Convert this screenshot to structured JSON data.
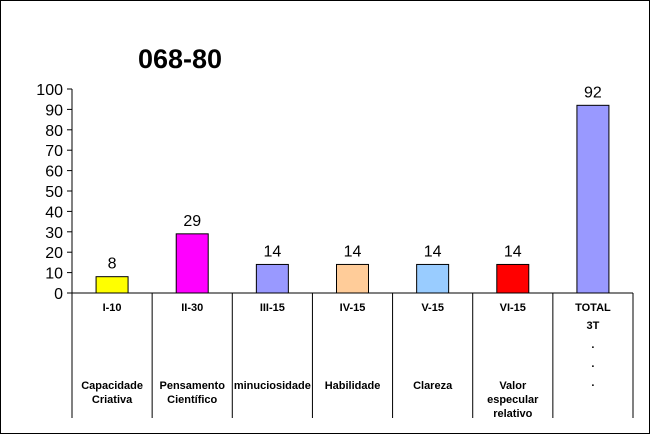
{
  "chart_data": {
    "type": "bar",
    "title": "068-80",
    "categories": [
      "I-10",
      "II-30",
      "III-15",
      "IV-15",
      "V-15",
      "VI-15",
      "TOTAL"
    ],
    "descriptions": [
      [
        "Capacidade",
        "Criativa"
      ],
      [
        "Pensamento",
        "Científico"
      ],
      [
        "minuciosidade"
      ],
      [
        "Habilidade"
      ],
      [
        "Clareza"
      ],
      [
        "Valor",
        "especular",
        "relativo"
      ],
      [
        "3T",
        ".",
        ".",
        "."
      ]
    ],
    "values": [
      8,
      29,
      14,
      14,
      14,
      14,
      92
    ],
    "bar_colors": [
      "#ffff00",
      "#ff00ff",
      "#9999ff",
      "#ffcc99",
      "#99ccff",
      "#ff0000",
      "#9999ff"
    ],
    "ylim": [
      0,
      100
    ],
    "yticks": [
      0,
      10,
      20,
      30,
      40,
      50,
      60,
      70,
      80,
      90,
      100
    ],
    "xlabel": "",
    "ylabel": "",
    "grid": false,
    "legend": "none"
  }
}
